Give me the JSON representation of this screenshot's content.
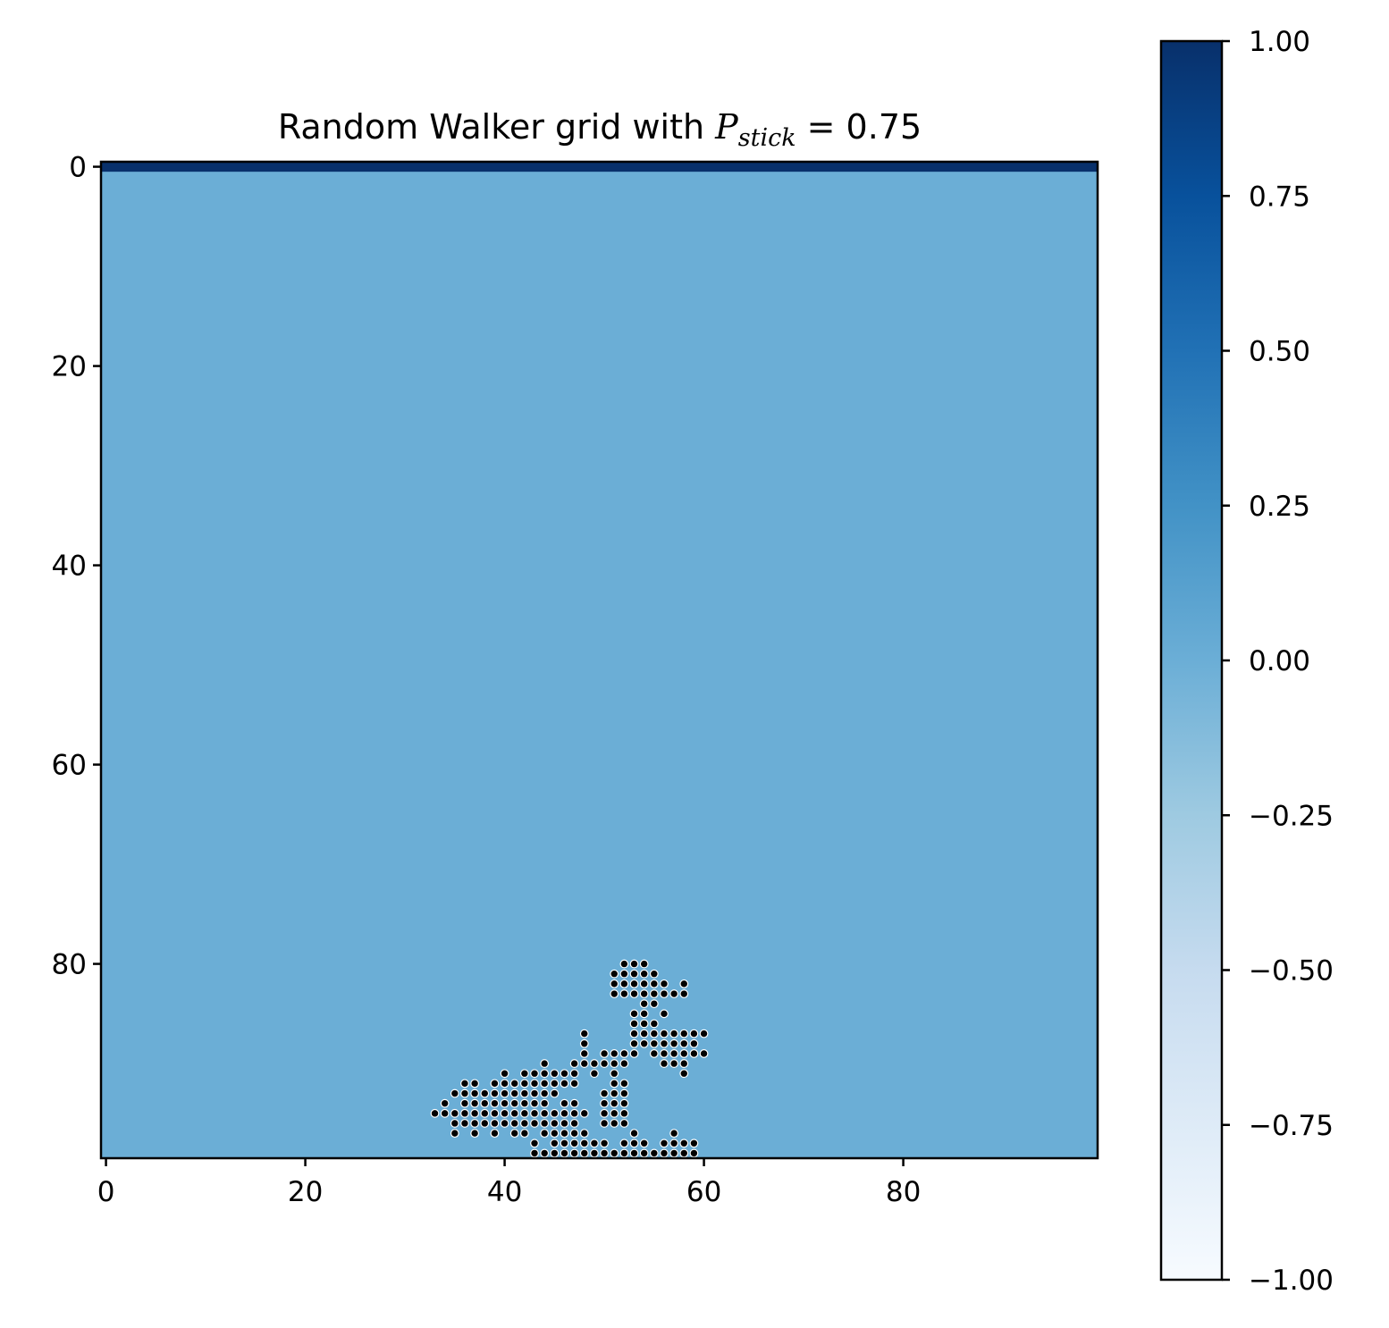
{
  "chart_data": {
    "type": "heatmap",
    "title": {
      "prefix": "Random Walker grid with ",
      "symbol": "P",
      "subscript": "stick",
      "suffix": " = 0.75"
    },
    "xlabel": "",
    "ylabel": "",
    "grid_size": 100,
    "xlim": [
      -0.5,
      99.5
    ],
    "ylim": [
      99.5,
      -0.5
    ],
    "xticks": [
      0,
      20,
      40,
      60,
      80
    ],
    "yticks": [
      0,
      20,
      40,
      60,
      80
    ],
    "background_value": 0.0,
    "top_row": {
      "row": 0,
      "value": 1.0
    },
    "colorbar": {
      "colormap": "Blues",
      "range": [
        -1.0,
        1.0
      ],
      "ticks": [
        1.0,
        0.75,
        0.5,
        0.25,
        0.0,
        -0.25,
        -0.5,
        -0.75,
        -1.0
      ],
      "tick_labels": [
        "1.00",
        "0.75",
        "0.50",
        "0.25",
        "0.00",
        "−0.25",
        "−0.50",
        "−0.75",
        "−1.00"
      ]
    },
    "colors": {
      "background_cell": "#6baed6",
      "top_row_cell": "#08306b",
      "walker_marker": "#000000",
      "marker_edge": "#ffffff"
    },
    "walker_cells": {
      "80": [
        52,
        53,
        54
      ],
      "81": [
        51,
        52,
        53,
        54,
        55
      ],
      "82": [
        51,
        52,
        53,
        54,
        55,
        56,
        58
      ],
      "83": [
        51,
        52,
        53,
        54,
        55,
        56,
        57,
        58
      ],
      "84": [
        54,
        55
      ],
      "85": [
        53,
        54,
        56
      ],
      "86": [
        53,
        54,
        55
      ],
      "87": [
        48,
        53,
        54,
        55,
        56,
        57,
        58,
        59,
        60
      ],
      "88": [
        48,
        53,
        54,
        55,
        56,
        57,
        58,
        59
      ],
      "89": [
        48,
        50,
        51,
        52,
        53,
        55,
        56,
        57,
        58,
        59,
        60
      ],
      "90": [
        44,
        47,
        48,
        49,
        50,
        51,
        52,
        56,
        57,
        58
      ],
      "91": [
        40,
        42,
        43,
        44,
        45,
        46,
        47,
        49,
        51,
        58
      ],
      "92": [
        36,
        37,
        39,
        40,
        41,
        42,
        43,
        44,
        45,
        46,
        47,
        51,
        52
      ],
      "93": [
        35,
        36,
        37,
        38,
        39,
        40,
        41,
        42,
        43,
        44,
        45,
        50,
        51,
        52
      ],
      "94": [
        34,
        36,
        37,
        38,
        39,
        40,
        41,
        42,
        43,
        44,
        46,
        47,
        50,
        51,
        52
      ],
      "95": [
        33,
        34,
        35,
        36,
        37,
        38,
        39,
        40,
        41,
        42,
        43,
        44,
        45,
        46,
        47,
        48,
        50,
        51,
        52
      ],
      "96": [
        35,
        36,
        37,
        38,
        39,
        40,
        41,
        42,
        43,
        44,
        45,
        46,
        47,
        50,
        51,
        52
      ],
      "97": [
        35,
        37,
        39,
        41,
        42,
        44,
        45,
        46,
        47,
        48,
        53,
        57
      ],
      "98": [
        43,
        45,
        46,
        47,
        48,
        49,
        50,
        52,
        53,
        54,
        56,
        57,
        58,
        59
      ],
      "99": [
        43,
        44,
        45,
        46,
        47,
        48,
        49,
        50,
        51,
        52,
        53,
        54,
        55,
        56,
        57,
        58,
        59
      ]
    }
  }
}
